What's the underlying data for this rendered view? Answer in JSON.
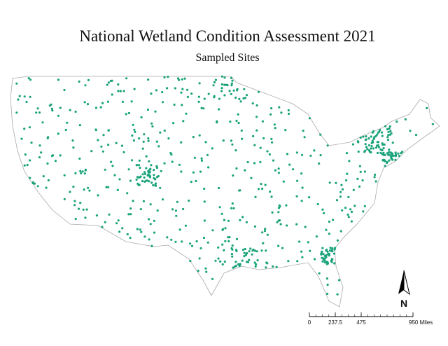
{
  "map": {
    "title": "National Wetland Condition Assessment 2021",
    "subtitle": "Sampled Sites",
    "north_label": "N",
    "scale_bar": {
      "ticks": [
        0,
        237.5,
        475,
        {
          "value": 950,
          "label": "950 Miles"
        }
      ],
      "max": 950
    }
  }
}
